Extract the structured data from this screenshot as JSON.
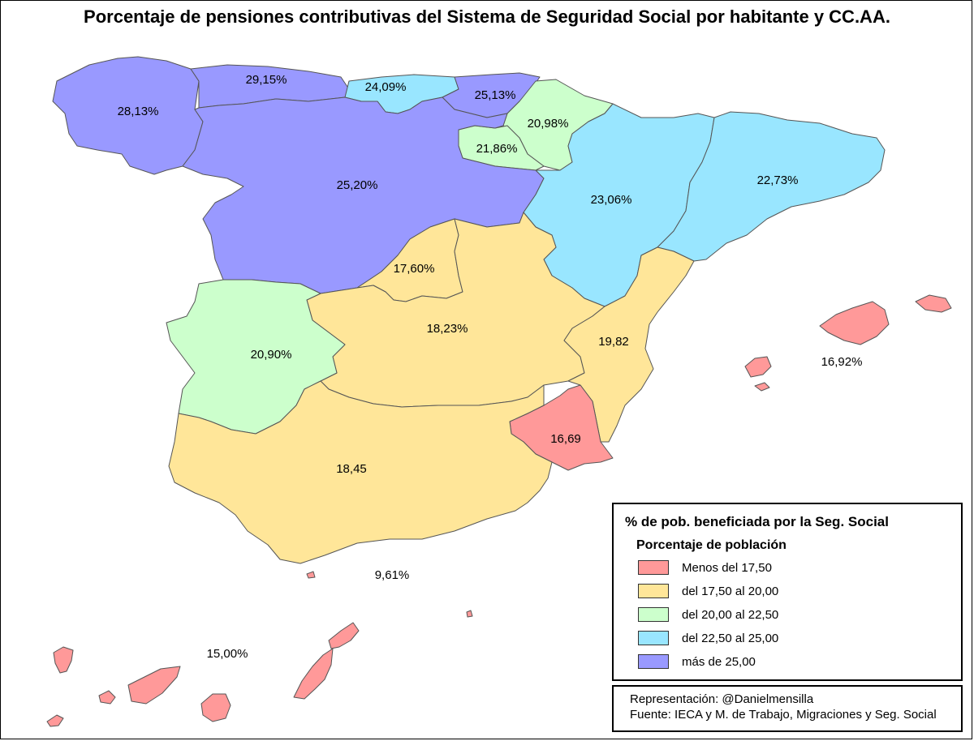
{
  "title": "Porcentaje de pensiones contributivas del Sistema de Seguridad Social por habitante y CC.AA.",
  "regions": [
    {
      "id": "galicia",
      "label": "28,13%",
      "color": "#9999ff"
    },
    {
      "id": "asturias",
      "label": "29,15%",
      "color": "#9999ff"
    },
    {
      "id": "cantabria",
      "label": "24,09%",
      "color": "#99e6ff"
    },
    {
      "id": "pais-vasco",
      "label": "25,13%",
      "color": "#9999ff"
    },
    {
      "id": "navarra",
      "label": "20,98%",
      "color": "#ccffcc"
    },
    {
      "id": "la-rioja",
      "label": "21,86%",
      "color": "#ccffcc"
    },
    {
      "id": "castilla-y-leon",
      "label": "25,20%",
      "color": "#9999ff"
    },
    {
      "id": "aragon",
      "label": "23,06%",
      "color": "#99e6ff"
    },
    {
      "id": "cataluna",
      "label": "22,73%",
      "color": "#99e6ff"
    },
    {
      "id": "madrid",
      "label": "17,60%",
      "color": "#ffe699"
    },
    {
      "id": "castilla-la-mancha",
      "label": "18,23%",
      "color": "#ffe699"
    },
    {
      "id": "extremadura",
      "label": "20,90%",
      "color": "#ccffcc"
    },
    {
      "id": "valencia",
      "label": "19,82",
      "color": "#ffe699"
    },
    {
      "id": "murcia",
      "label": "16,69",
      "color": "#ff9999"
    },
    {
      "id": "andalucia",
      "label": "18,45",
      "color": "#ffe699"
    },
    {
      "id": "baleares",
      "label": "16,92%",
      "color": "#ff9999"
    },
    {
      "id": "canarias",
      "label": "15,00%",
      "color": "#ff9999"
    },
    {
      "id": "ceuta-melilla",
      "label": "9,61%",
      "color": "#ff9999"
    }
  ],
  "legend": {
    "title": "% de pob. beneficiada por la Seg. Social",
    "subtitle": "Porcentaje de población",
    "items": [
      {
        "label": "Menos del 17,50",
        "color": "#ff9999"
      },
      {
        "label": "del 17,50 al 20,00",
        "color": "#ffe699"
      },
      {
        "label": "del 20,00 al 22,50",
        "color": "#ccffcc"
      },
      {
        "label": "del 22,50 al 25,00",
        "color": "#99e6ff"
      },
      {
        "label": "más de 25,00",
        "color": "#9999ff"
      }
    ]
  },
  "credits": {
    "line1": "Representación: @Danielmensilla",
    "line2": "Fuente: IECA y M. de Trabajo, Migraciones y Seg. Social"
  }
}
